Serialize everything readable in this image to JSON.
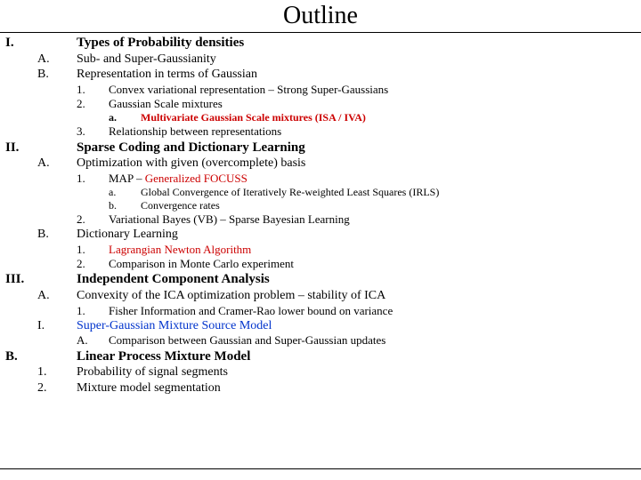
{
  "title": "Outline",
  "colors": {
    "red": "#cc0000",
    "blue": "#0033cc",
    "text": "#000000",
    "background": "#ffffff",
    "rule": "#000000"
  },
  "typography": {
    "family": "Times New Roman",
    "title_fontsize": 28,
    "body_fontsize": 14,
    "small_fontsize": 13,
    "xsmall_fontsize": 12
  },
  "outline": {
    "I": {
      "num": "I.",
      "text": "Types of Probability densities"
    },
    "IA": {
      "num": "A.",
      "text": "Sub- and Super-Gaussianity"
    },
    "IB": {
      "num": "B.",
      "text": "Representation in terms of Gaussian"
    },
    "IB1": {
      "num": "1.",
      "text": "Convex variational representation – Strong Super-Gaussians"
    },
    "IB2": {
      "num": "2.",
      "text": "Gaussian Scale mixtures"
    },
    "IB2a": {
      "num": "a.",
      "text": "Multivariate Gaussian Scale mixtures (ISA / IVA)"
    },
    "IB3": {
      "num": "3.",
      "text": "Relationship between representations"
    },
    "II": {
      "num": "II.",
      "text": "Sparse Coding and Dictionary Learning"
    },
    "IIA": {
      "num": "A.",
      "text": "Optimization with given (overcomplete) basis"
    },
    "IIA1": {
      "num": "1.",
      "text_pre": "MAP – ",
      "text_red": "Generalized FOCUSS"
    },
    "IIA1a": {
      "num": "a.",
      "text": "Global Convergence of Iteratively Re-weighted Least Squares (IRLS)"
    },
    "IIA1b": {
      "num": "b.",
      "text": "Convergence rates"
    },
    "IIA2": {
      "num": "2.",
      "text": "Variational Bayes (VB) – Sparse Bayesian Learning"
    },
    "IIB": {
      "num": "B.",
      "text": "Dictionary Learning"
    },
    "IIB1": {
      "num": "1.",
      "text": "Lagrangian Newton Algorithm"
    },
    "IIB2": {
      "num": "2.",
      "text": "Comparison in Monte Carlo experiment"
    },
    "III": {
      "num": "III.",
      "text": "Independent Component Analysis"
    },
    "IIIA": {
      "num": "A.",
      "text": "Convexity of the ICA optimization problem – stability of ICA"
    },
    "IIIA1": {
      "num": "1.",
      "text": "Fisher Information and Cramer-Rao lower bound on variance"
    },
    "IIII": {
      "num": "I.",
      "text": "Super-Gaussian Mixture Source Model"
    },
    "IIIIA": {
      "num": "A.",
      "text": "Comparison between Gaussian and Super-Gaussian updates"
    },
    "B": {
      "num": "B.",
      "text": "Linear Process Mixture Model"
    },
    "B1": {
      "num": "1.",
      "text": "Probability of signal segments"
    },
    "B2": {
      "num": "2.",
      "text": "Mixture model segmentation"
    }
  }
}
